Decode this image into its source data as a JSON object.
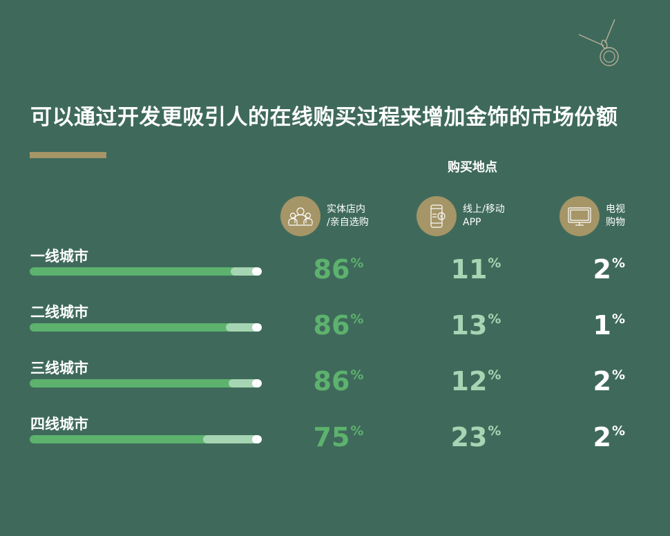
{
  "title": "可以通过开发更吸引人的在线购买过程来增加金饰的市场份额",
  "group_title": "购买地点",
  "colors": {
    "background": "#3f6a5b",
    "gold": "#a59567",
    "store": "#5db26e",
    "online": "#a6d5b3",
    "tv": "#ffffff"
  },
  "channels": [
    {
      "label": "实体店内\n/亲自选购",
      "icon": "shoppers-icon"
    },
    {
      "label": "线上/移动\nAPP",
      "icon": "mobile-payment-icon"
    },
    {
      "label": "电视\n购物",
      "icon": "tv-icon"
    }
  ],
  "percent_symbol": "%",
  "chart_data": {
    "type": "bar",
    "stacked": true,
    "orientation": "horizontal",
    "categories": [
      "一线城市",
      "二线城市",
      "三线城市",
      "四线城市"
    ],
    "series": [
      {
        "name": "实体店内/亲自选购",
        "values": [
          86,
          86,
          86,
          75
        ]
      },
      {
        "name": "线上/移动APP",
        "values": [
          11,
          13,
          12,
          23
        ]
      },
      {
        "name": "电视购物",
        "values": [
          2,
          1,
          2,
          2
        ]
      }
    ],
    "unit": "%"
  }
}
